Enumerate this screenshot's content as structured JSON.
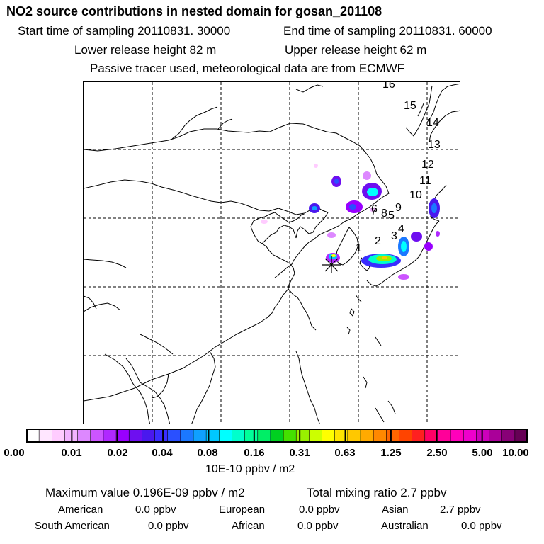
{
  "header": {
    "title": "NO2 source contributions in nested domain for gosan_201108",
    "start_time": "Start time of sampling 20110831. 30000",
    "end_time": "End time of sampling 20110831. 60000",
    "lower_release": "Lower release height   82 m",
    "upper_release": "Upper release height   62 m",
    "tracer_note": "Passive tracer used, meteorological data are from ECMWF"
  },
  "map": {
    "trajectory_labels": [
      "1",
      "2",
      "3",
      "4",
      "5",
      "6",
      "7",
      "8",
      "9",
      "10",
      "11",
      "12",
      "13",
      "14",
      "15",
      "16"
    ],
    "release_marker": "release-site-asterisk"
  },
  "legend": {
    "tick_labels": [
      "0.00",
      "0.01",
      "0.02",
      "0.04",
      "0.08",
      "0.16",
      "0.31",
      "0.63",
      "1.25",
      "2.50",
      "5.00",
      "10.00"
    ],
    "unit": "10E-10 ppbv / m2",
    "colors": [
      "#ffffff",
      "#ffe6ff",
      "#ffccff",
      "#f2b3ff",
      "#dd88ff",
      "#cc55ff",
      "#b028ff",
      "#9900ff",
      "#6e0ff0",
      "#4a18ee",
      "#3a2dff",
      "#2a50ff",
      "#1b78ff",
      "#0fa0ff",
      "#00c8ff",
      "#00ffff",
      "#00ffcc",
      "#00ff99",
      "#00ee66",
      "#00d020",
      "#44e000",
      "#99f000",
      "#ccff00",
      "#ffff00",
      "#ffe400",
      "#ffc800",
      "#ffaa00",
      "#ff8800",
      "#ff6600",
      "#ff4400",
      "#ff2020",
      "#ff0066",
      "#ff0099",
      "#ff00bb",
      "#ee00cc",
      "#cc00bb",
      "#aa0099",
      "#880077",
      "#660055"
    ]
  },
  "summary": {
    "max_value": "Maximum value  0.196E-09 ppbv / m2",
    "total_mixing": "Total mixing ratio        2.7 ppbv",
    "regions": [
      {
        "name": "American",
        "value": "0.0 ppbv"
      },
      {
        "name": "European",
        "value": "0.0 ppbv"
      },
      {
        "name": "Asian",
        "value": "2.7 ppbv"
      },
      {
        "name": "South American",
        "value": "0.0 ppbv"
      },
      {
        "name": "African",
        "value": "0.0 ppbv"
      },
      {
        "name": "Australian",
        "value": "0.0 ppbv"
      }
    ]
  }
}
